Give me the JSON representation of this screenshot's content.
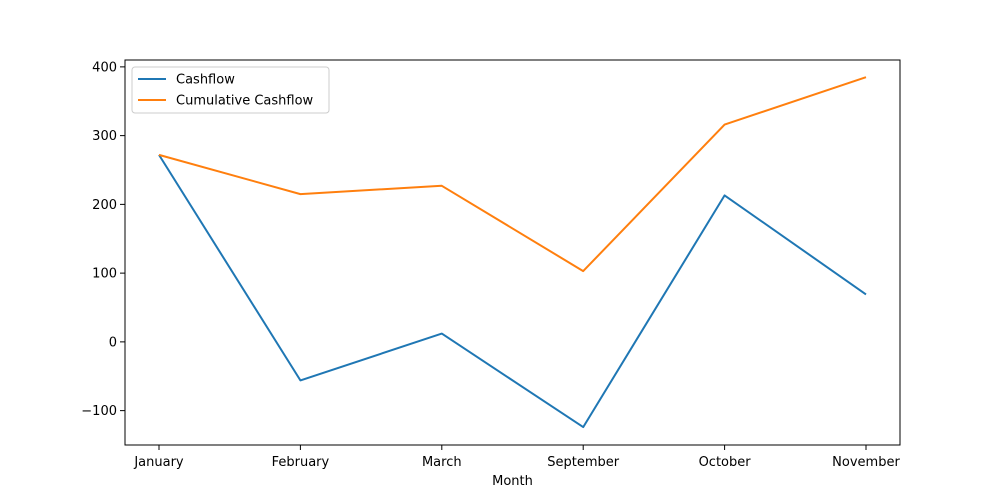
{
  "chart_data": {
    "type": "line",
    "title": "",
    "xlabel": "Month",
    "ylabel": "",
    "categories": [
      "January",
      "February",
      "March",
      "September",
      "October",
      "November"
    ],
    "ylim": [
      -150,
      410
    ],
    "yticks": [
      -100,
      0,
      100,
      200,
      300,
      400
    ],
    "ytick_labels": [
      "−100",
      "0",
      "100",
      "200",
      "300",
      "400"
    ],
    "grid": false,
    "legend_position": "top-left",
    "series": [
      {
        "name": "Cashflow",
        "color": "#1f77b4",
        "values": [
          272,
          -56,
          12,
          -124,
          213,
          69
        ]
      },
      {
        "name": "Cumulative Cashflow",
        "color": "#ff7f0e",
        "values": [
          272,
          215,
          227,
          103,
          316,
          385
        ]
      }
    ]
  }
}
